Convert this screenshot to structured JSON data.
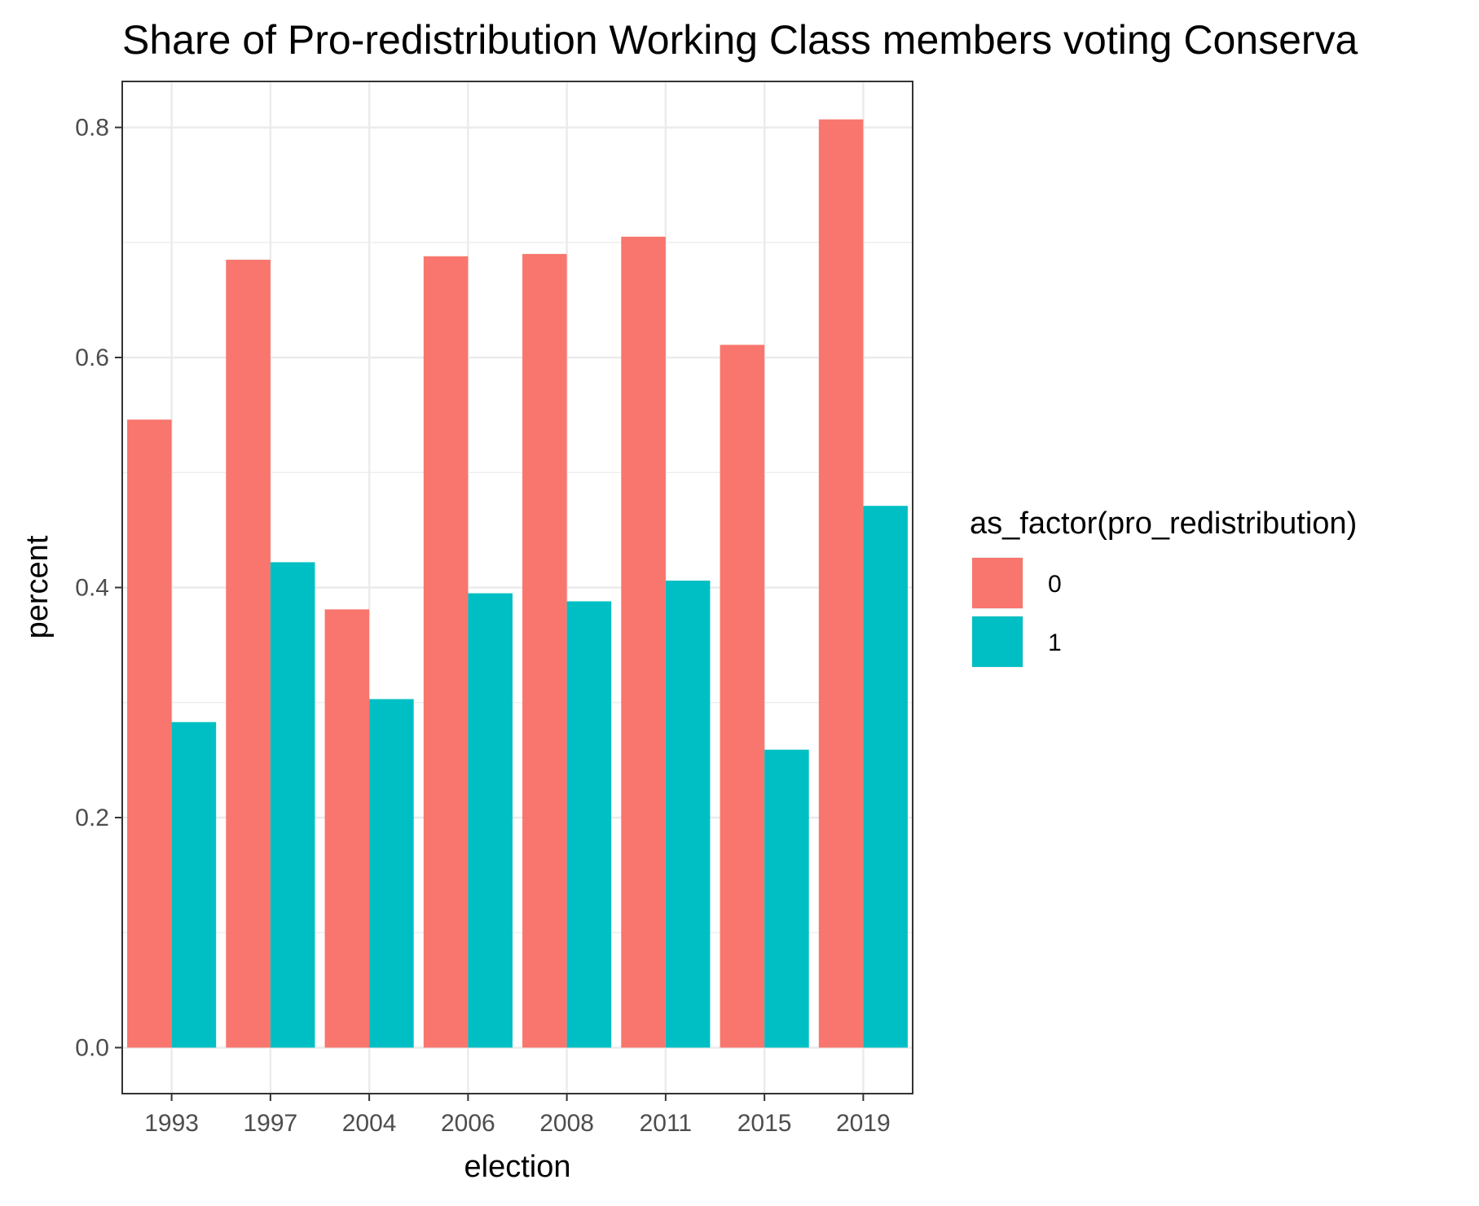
{
  "chart_data": {
    "type": "bar",
    "title": "Share of Pro-redistribution Working Class members voting Conserva",
    "xlabel": "election",
    "ylabel": "percent",
    "categories": [
      "1993",
      "1997",
      "2004",
      "2006",
      "2008",
      "2011",
      "2015",
      "2019"
    ],
    "series": [
      {
        "name": "0",
        "color": "#F8766D",
        "values": [
          0.546,
          0.685,
          0.381,
          0.688,
          0.69,
          0.705,
          0.611,
          0.807
        ]
      },
      {
        "name": "1",
        "color": "#00BFC4",
        "values": [
          0.283,
          0.422,
          0.303,
          0.395,
          0.388,
          0.406,
          0.259,
          0.471
        ]
      }
    ],
    "ylim": [
      -0.04,
      0.84
    ],
    "yticks": [
      0.0,
      0.2,
      0.4,
      0.6,
      0.8
    ],
    "ytick_labels": [
      "0.0",
      "0.2",
      "0.4",
      "0.6",
      "0.8"
    ],
    "grid": true,
    "legend": {
      "title": "as_factor(pro_redistribution)",
      "position": "right"
    }
  }
}
